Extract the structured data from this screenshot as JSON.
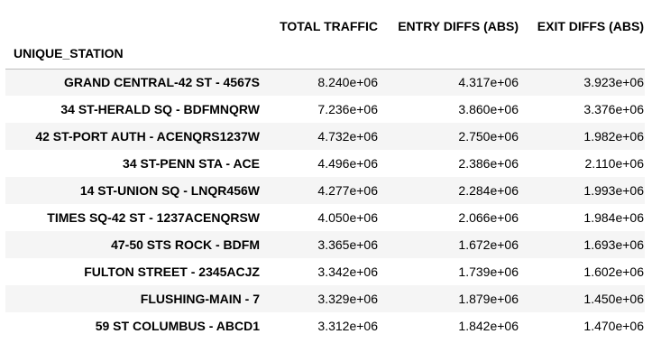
{
  "table": {
    "columns": [
      "TOTAL TRAFFIC",
      "ENTRY DIFFS (ABS)",
      "EXIT DIFFS (ABS)"
    ],
    "index_name": "UNIQUE_STATION",
    "rows": [
      {
        "station": "GRAND CENTRAL-42 ST - 4567S",
        "total": "8.240e+06",
        "entry": "4.317e+06",
        "exit": "3.923e+06"
      },
      {
        "station": "34 ST-HERALD SQ - BDFMNQRW",
        "total": "7.236e+06",
        "entry": "3.860e+06",
        "exit": "3.376e+06"
      },
      {
        "station": "42 ST-PORT AUTH - ACENQRS1237W",
        "total": "4.732e+06",
        "entry": "2.750e+06",
        "exit": "1.982e+06"
      },
      {
        "station": "34 ST-PENN STA - ACE",
        "total": "4.496e+06",
        "entry": "2.386e+06",
        "exit": "2.110e+06"
      },
      {
        "station": "14 ST-UNION SQ - LNQR456W",
        "total": "4.277e+06",
        "entry": "2.284e+06",
        "exit": "1.993e+06"
      },
      {
        "station": "TIMES SQ-42 ST - 1237ACENQRSW",
        "total": "4.050e+06",
        "entry": "2.066e+06",
        "exit": "1.984e+06"
      },
      {
        "station": "47-50 STS ROCK - BDFM",
        "total": "3.365e+06",
        "entry": "1.672e+06",
        "exit": "1.693e+06"
      },
      {
        "station": "FULTON STREET - 2345ACJZ",
        "total": "3.342e+06",
        "entry": "1.739e+06",
        "exit": "1.602e+06"
      },
      {
        "station": "FLUSHING-MAIN - 7",
        "total": "3.329e+06",
        "entry": "1.879e+06",
        "exit": "1.450e+06"
      },
      {
        "station": "59 ST COLUMBUS - ABCD1",
        "total": "3.312e+06",
        "entry": "1.842e+06",
        "exit": "1.470e+06"
      }
    ]
  }
}
